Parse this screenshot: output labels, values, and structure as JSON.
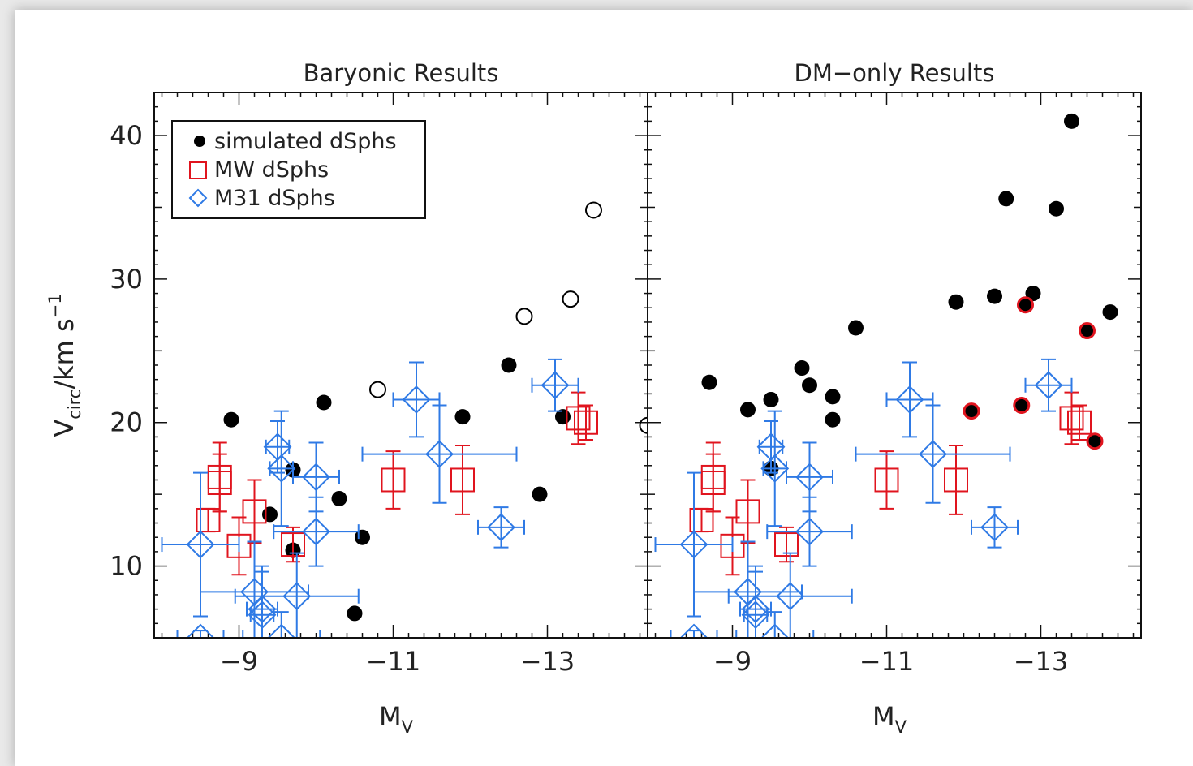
{
  "chart_data": [
    {
      "type": "scatter",
      "title": "Baryonic Results",
      "xlabel": "M",
      "xlabel_sub": "V",
      "ylabel": "V",
      "ylabel_sub": "circ",
      "ylabel_rest": "/km s",
      "ylabel_sup": "−1",
      "xlim": [
        -7.9,
        -14.3
      ],
      "ylim": [
        5,
        43
      ],
      "x_ticks": [
        -9,
        -11,
        -13
      ],
      "x_tick_labels": [
        "−9",
        "−11",
        "−13"
      ],
      "y_ticks": [
        10,
        20,
        30,
        40
      ],
      "y_tick_labels": [
        "10",
        "20",
        "30",
        "40"
      ],
      "legend": {
        "position": "top-left",
        "entries": [
          {
            "label": "simulated dSphs",
            "marker": "filled-circle",
            "color": "#000000"
          },
          {
            "label": "MW dSphs",
            "marker": "square",
            "color": "#e0141e"
          },
          {
            "label": "M31 dSphs",
            "marker": "diamond",
            "color": "#2f7ae5"
          }
        ]
      },
      "series": [
        {
          "label": "simulated dSphs",
          "marker": "filled-circle",
          "x": [
            -8.9,
            -9.4,
            -9.7,
            -9.7,
            -10.1,
            -10.3,
            -10.6,
            -10.5,
            -12.5,
            -12.9,
            -13.2,
            -11.9
          ],
          "y": [
            20.2,
            13.6,
            11.1,
            16.7,
            21.4,
            14.7,
            12.0,
            6.7,
            24.0,
            15.0,
            20.4,
            20.4
          ]
        },
        {
          "label": "",
          "marker": "open-circle",
          "x": [
            -10.8,
            -12.7,
            -13.3,
            -13.6,
            -14.3
          ],
          "y": [
            22.3,
            27.4,
            28.6,
            34.8,
            19.8
          ]
        },
        {
          "label": "MW dSphs",
          "marker": "square",
          "x": [
            -8.6,
            -8.75,
            -8.75,
            -9.0,
            -9.2,
            -9.7,
            -11.0,
            -11.9,
            -13.5,
            -13.4
          ],
          "y": [
            13.2,
            16.2,
            15.8,
            11.4,
            13.8,
            11.5,
            16.0,
            16.0,
            20.0,
            20.3
          ],
          "y_err": [
            0.8,
            2.4,
            2.0,
            2.0,
            2.2,
            1.2,
            2.0,
            2.4,
            1.2,
            1.8
          ]
        },
        {
          "label": "M31 dSphs",
          "marker": "diamond",
          "x": [
            -8.5,
            -8.5,
            -9.2,
            -9.3,
            -9.3,
            -9.5,
            -9.55,
            -9.55,
            -9.75,
            -10.0,
            -10.0,
            -11.3,
            -11.6,
            -12.4,
            -13.1
          ],
          "y": [
            11.5,
            5.0,
            8.2,
            7.0,
            6.6,
            18.3,
            5.0,
            16.8,
            7.9,
            16.2,
            12.4,
            21.6,
            17.8,
            12.7,
            22.6
          ],
          "x_err": [
            0.5,
            0.3,
            0.7,
            0.2,
            0.15,
            0.15,
            0.5,
            0.15,
            0.8,
            0.3,
            0.55,
            0.3,
            1.0,
            0.3,
            0.3
          ],
          "y_err": [
            5.0,
            0.5,
            3.5,
            3.0,
            3.0,
            1.8,
            1.8,
            4.0,
            3.0,
            2.4,
            2.4,
            2.6,
            3.4,
            1.4,
            1.8
          ]
        }
      ]
    },
    {
      "type": "scatter",
      "title": "DM−only Results",
      "xlabel": "M",
      "xlabel_sub": "V",
      "xlim": [
        -7.9,
        -14.3
      ],
      "ylim": [
        5,
        43
      ],
      "x_ticks": [
        -9,
        -11,
        -13
      ],
      "x_tick_labels": [
        "−9",
        "−11",
        "−13"
      ],
      "series": [
        {
          "label": "simulated dSphs",
          "marker": "filled-circle",
          "x": [
            -8.7,
            -9.2,
            -9.5,
            -9.5,
            -9.9,
            -10.0,
            -10.3,
            -10.3,
            -10.6,
            -11.9,
            -12.4,
            -12.55,
            -12.9,
            -13.2,
            -13.4,
            -13.9
          ],
          "y": [
            22.8,
            20.9,
            21.6,
            16.8,
            23.8,
            22.6,
            20.2,
            21.8,
            26.6,
            28.4,
            28.8,
            35.6,
            29.0,
            34.9,
            41.0,
            27.7
          ]
        },
        {
          "label": "",
          "marker": "red-edged-circle",
          "x": [
            -12.1,
            -12.75,
            -12.8,
            -13.6,
            -13.7
          ],
          "y": [
            20.8,
            21.2,
            28.2,
            26.4,
            18.7
          ]
        },
        {
          "label": "MW dSphs",
          "marker": "square",
          "x": [
            -8.6,
            -8.75,
            -8.75,
            -9.0,
            -9.2,
            -9.7,
            -11.0,
            -11.9,
            -13.5,
            -13.4
          ],
          "y": [
            13.2,
            16.2,
            15.8,
            11.4,
            13.8,
            11.5,
            16.0,
            16.0,
            20.0,
            20.3
          ],
          "y_err": [
            0.8,
            2.4,
            2.0,
            2.0,
            2.2,
            1.2,
            2.0,
            2.4,
            1.2,
            1.8
          ]
        },
        {
          "label": "M31 dSphs",
          "marker": "diamond",
          "x": [
            -8.5,
            -8.5,
            -9.2,
            -9.3,
            -9.3,
            -9.5,
            -9.55,
            -9.55,
            -9.75,
            -10.0,
            -10.0,
            -11.3,
            -11.6,
            -12.4,
            -13.1
          ],
          "y": [
            11.5,
            5.0,
            8.2,
            7.0,
            6.6,
            18.3,
            5.0,
            16.8,
            7.9,
            16.2,
            12.4,
            21.6,
            17.8,
            12.7,
            22.6
          ],
          "x_err": [
            0.5,
            0.3,
            0.7,
            0.2,
            0.15,
            0.15,
            0.5,
            0.15,
            0.8,
            0.3,
            0.55,
            0.3,
            1.0,
            0.3,
            0.3
          ],
          "y_err": [
            5.0,
            0.5,
            3.5,
            3.0,
            3.0,
            1.8,
            1.8,
            4.0,
            3.0,
            2.4,
            2.4,
            2.6,
            3.4,
            1.4,
            1.8
          ]
        }
      ]
    }
  ]
}
